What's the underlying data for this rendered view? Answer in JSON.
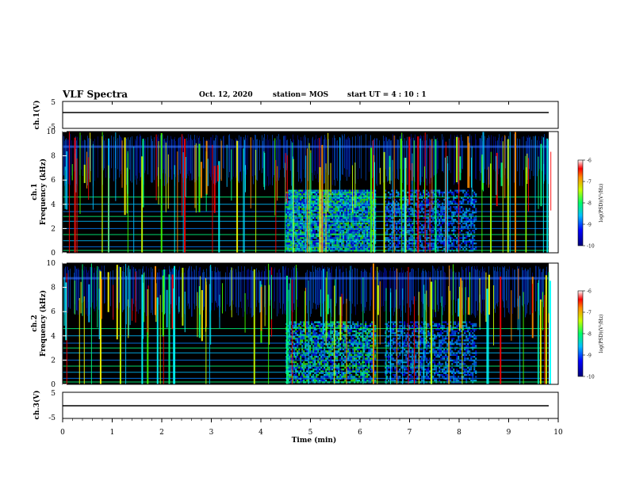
{
  "header": {
    "title": "VLF Spectra",
    "date": "Oct. 12, 2020",
    "station": "station= MOS",
    "start": "start  UT =   4 : 10 : 1"
  },
  "chart_data": {
    "type": "heatmap",
    "xlabel": "Time  (min)",
    "xlim": [
      0,
      10
    ],
    "x_ticks": [
      "0",
      "1",
      "2",
      "3",
      "4",
      "5",
      "6",
      "7",
      "8",
      "9",
      "10"
    ],
    "panels": [
      {
        "id": "ch1-voltage",
        "ylabel": "ch.1(V)",
        "ylim": [
          -5,
          5
        ],
        "y_ticks": [
          "5",
          "-5"
        ],
        "trace_value": 0
      },
      {
        "id": "ch1-spectrogram",
        "ylabel_top": "ch.1",
        "ylabel": "Frequency  (kHz)",
        "ylim": [
          0,
          10
        ],
        "y_ticks": [
          "0",
          "2",
          "4",
          "6",
          "8",
          "10"
        ],
        "colorbar": {
          "label": "log(PSD)(V²/Hz)",
          "range": [
            -10,
            -6
          ],
          "ticks": [
            "-6",
            "-7",
            "-8",
            "-9",
            "-10"
          ]
        }
      },
      {
        "id": "ch2-spectrogram",
        "ylabel_top": "ch.2",
        "ylabel": "Frequency  (kHz)",
        "ylim": [
          0,
          10
        ],
        "y_ticks": [
          "0",
          "2",
          "4",
          "6",
          "8",
          "10"
        ],
        "colorbar": {
          "label": "log(PSD)(V²/Hz)",
          "range": [
            -10,
            -6
          ],
          "ticks": [
            "-6",
            "-7",
            "-8",
            "-9",
            "-10"
          ]
        }
      },
      {
        "id": "ch3-voltage",
        "ylabel": "ch.3(V)",
        "ylim": [
          -5,
          5
        ],
        "y_ticks": [
          "5",
          "-5"
        ],
        "trace_value": 0
      }
    ],
    "features": {
      "broadband_interval_min": [
        4.5,
        6.3
      ],
      "broadband_upper_khz": 5.2,
      "secondary_interval_min": [
        6.5,
        8.35
      ],
      "secondary_upper_khz": 5.2,
      "sferic_band_khz": [
        5.5,
        9.8
      ],
      "narrowband_lines_khz": [
        0.2,
        0.5,
        1.0,
        1.5,
        2.0,
        2.6,
        3.0,
        3.4,
        4.0,
        4.6
      ]
    }
  }
}
